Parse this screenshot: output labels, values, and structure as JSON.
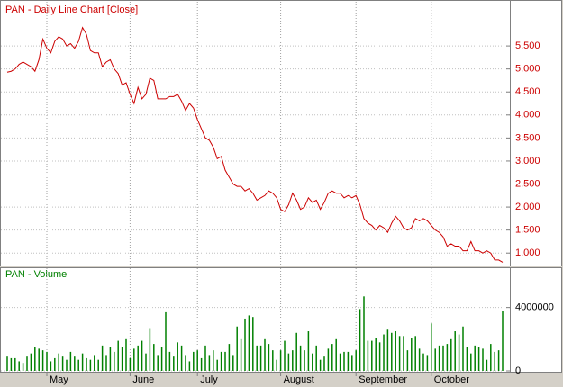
{
  "chart_data": [
    {
      "type": "line",
      "title": "PAN - Daily Line Chart [Close]",
      "color": "#cc0000",
      "grid": true,
      "ylim": [
        0.75,
        6.46
      ],
      "yticks": [
        {
          "value": 1,
          "label": "1.000"
        },
        {
          "value": 1.5,
          "label": "1.500"
        },
        {
          "value": 2,
          "label": "2.000"
        },
        {
          "value": 2.5,
          "label": "2.500"
        },
        {
          "value": 3,
          "label": "3.000"
        },
        {
          "value": 3.5,
          "label": "3.500"
        },
        {
          "value": 4,
          "label": "4.000"
        },
        {
          "value": 4.5,
          "label": "4.500"
        },
        {
          "value": 5,
          "label": "5.000"
        },
        {
          "value": 5.5,
          "label": "5.500"
        }
      ],
      "values": [
        4.93,
        4.95,
        5.0,
        5.1,
        5.15,
        5.1,
        5.05,
        4.95,
        5.2,
        5.65,
        5.45,
        5.35,
        5.6,
        5.7,
        5.65,
        5.5,
        5.55,
        5.45,
        5.6,
        5.9,
        5.75,
        5.4,
        5.35,
        5.35,
        5.05,
        5.15,
        5.2,
        5.0,
        4.9,
        4.65,
        4.7,
        4.45,
        4.25,
        4.6,
        4.35,
        4.45,
        4.8,
        4.75,
        4.35,
        4.35,
        4.35,
        4.4,
        4.4,
        4.45,
        4.3,
        4.1,
        4.25,
        4.15,
        3.9,
        3.7,
        3.5,
        3.45,
        3.3,
        3.05,
        3.1,
        2.8,
        2.65,
        2.5,
        2.45,
        2.45,
        2.35,
        2.4,
        2.3,
        2.15,
        2.2,
        2.25,
        2.35,
        2.3,
        2.2,
        1.95,
        1.9,
        2.05,
        2.3,
        2.15,
        1.95,
        2.0,
        2.2,
        2.1,
        2.15,
        1.95,
        2.1,
        2.3,
        2.35,
        2.3,
        2.3,
        2.2,
        2.25,
        2.2,
        2.25,
        2.05,
        1.75,
        1.65,
        1.6,
        1.5,
        1.6,
        1.55,
        1.45,
        1.65,
        1.8,
        1.7,
        1.55,
        1.5,
        1.55,
        1.75,
        1.7,
        1.75,
        1.7,
        1.6,
        1.5,
        1.45,
        1.35,
        1.15,
        1.2,
        1.15,
        1.15,
        1.05,
        1.05,
        1.25,
        1.05,
        1.05,
        1.0,
        1.05,
        1.0,
        0.85,
        0.85,
        0.8
      ]
    },
    {
      "type": "bar",
      "title": "PAN - Volume",
      "color": "#008000",
      "grid": true,
      "ylim": [
        0,
        6480000
      ],
      "yticks": [
        0,
        4000000
      ],
      "categories": [
        null,
        null,
        null,
        null,
        null,
        null,
        null,
        null,
        null,
        null,
        "May",
        null,
        null,
        null,
        null,
        null,
        null,
        null,
        null,
        null,
        null,
        null,
        null,
        null,
        null,
        null,
        null,
        null,
        null,
        null,
        null,
        "June",
        null,
        null,
        null,
        null,
        null,
        null,
        null,
        null,
        null,
        null,
        null,
        null,
        null,
        null,
        null,
        null,
        "July",
        null,
        null,
        null,
        null,
        null,
        null,
        null,
        null,
        null,
        null,
        null,
        null,
        null,
        null,
        null,
        null,
        null,
        null,
        null,
        null,
        "August",
        null,
        null,
        null,
        null,
        null,
        null,
        null,
        null,
        null,
        null,
        null,
        null,
        null,
        null,
        null,
        null,
        null,
        null,
        "September",
        null,
        null,
        null,
        null,
        null,
        null,
        null,
        null,
        null,
        null,
        null,
        null,
        null,
        null,
        null,
        null,
        null,
        null,
        "October",
        null,
        null,
        null,
        null,
        null,
        null,
        null,
        null,
        null,
        null,
        null,
        null,
        null,
        null,
        null,
        null,
        null,
        null
      ],
      "values": [
        900000,
        800000,
        800000,
        600000,
        500000,
        900000,
        1100000,
        1500000,
        1400000,
        1300000,
        1200000,
        600000,
        800000,
        1100000,
        900000,
        700000,
        1200000,
        900000,
        700000,
        1100000,
        800000,
        700000,
        1000000,
        700000,
        1600000,
        1000000,
        1500000,
        1200000,
        1900000,
        1500000,
        2000000,
        800000,
        1400000,
        1600000,
        1900000,
        1100000,
        2700000,
        1700000,
        1000000,
        1500000,
        3700000,
        1200000,
        900000,
        1800000,
        1600000,
        1000000,
        600000,
        1200000,
        1300000,
        800000,
        1600000,
        1000000,
        1300000,
        700000,
        1200000,
        1200000,
        1700000,
        1000000,
        2800000,
        2000000,
        3300000,
        3500000,
        3400000,
        1600000,
        1600000,
        2000000,
        1700000,
        1300000,
        700000,
        1300000,
        1900000,
        1100000,
        1300000,
        2400000,
        1600000,
        1300000,
        2500000,
        1100000,
        1600000,
        700000,
        900000,
        1400000,
        1700000,
        2000000,
        1100000,
        1200000,
        1200000,
        1000000,
        1300000,
        3900000,
        4700000,
        1900000,
        1900000,
        2100000,
        1800000,
        2300000,
        2600000,
        2400000,
        2500000,
        2200000,
        2200000,
        1300000,
        2100000,
        2200000,
        1400000,
        1100000,
        1000000,
        3000000,
        1400000,
        1600000,
        1600000,
        1700000,
        2000000,
        2500000,
        2300000,
        2800000,
        1500000,
        1100000,
        1600000,
        1500000,
        1400000,
        700000,
        1700000,
        1200000,
        1300000,
        3800000
      ]
    }
  ]
}
